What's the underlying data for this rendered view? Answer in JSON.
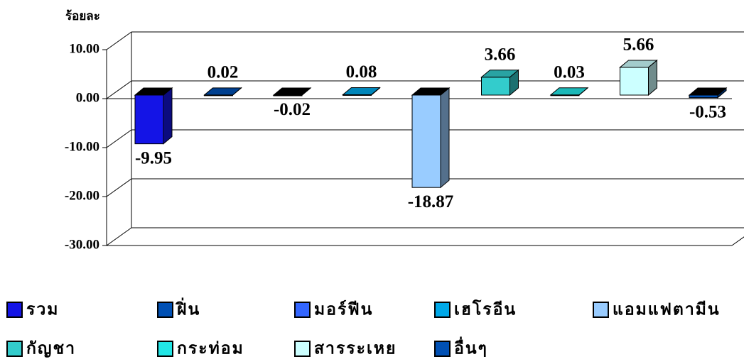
{
  "chart_data": {
    "type": "bar3d",
    "y_label": "ร้อยละ",
    "categories": [
      "รวม",
      "ฝิ่น",
      "มอร์ฟีน",
      "เฮโรอีน",
      "แอมแฟตามีน",
      "กัญชา",
      "กระท่อม",
      "สารระเหย",
      "อื่นๆ"
    ],
    "values": [
      -9.95,
      0.02,
      -0.02,
      0.08,
      -18.87,
      3.66,
      0.03,
      5.66,
      -0.53
    ],
    "colors": [
      "#1414e6",
      "#0050b4",
      "#3366ff",
      "#00a8e8",
      "#99ccff",
      "#33cccc",
      "#22e6e6",
      "#ccffff",
      "#0050b4"
    ],
    "ylim": [
      -30,
      10
    ],
    "yticks": [
      {
        "value": 10,
        "label": "10.00"
      },
      {
        "value": 0,
        "label": "0.00"
      },
      {
        "value": -10,
        "label": "-10.00"
      },
      {
        "value": -20,
        "label": "-20.00"
      },
      {
        "value": -30,
        "label": "-30.00"
      }
    ],
    "grid": true
  }
}
